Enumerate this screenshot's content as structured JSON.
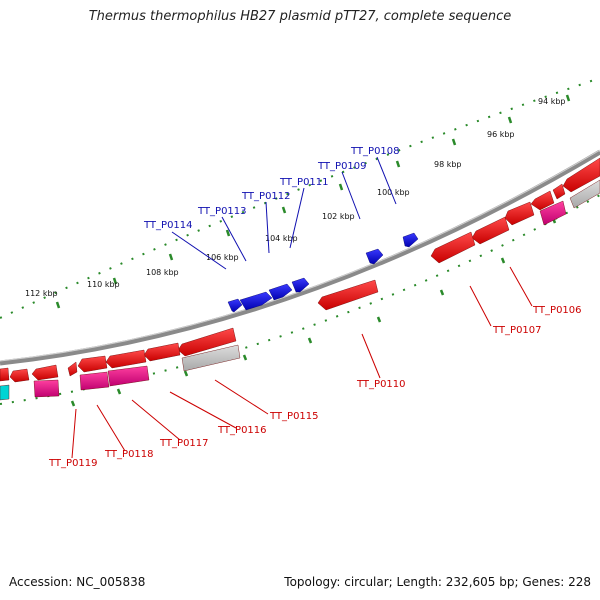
{
  "title": "Thermus thermophilus HB27 plasmid pTT27, complete sequence",
  "footer": {
    "accession": "Accession: NC_005838",
    "stats": "Topology: circular; Length: 232,605 bp; Genes: 228"
  },
  "kbp_ticks": [
    "94 kbp",
    "96 kbp",
    "98 kbp",
    "100 kbp",
    "102 kbp",
    "104 kbp",
    "106 kbp",
    "108 kbp",
    "110 kbp",
    "112 kbp"
  ],
  "forward_genes": [
    "TT_P0108",
    "TT_P0109",
    "TT_P0111",
    "TT_P0112",
    "TT_P0113",
    "TT_P0114"
  ],
  "reverse_genes": [
    "TT_P0106",
    "TT_P0107",
    "TT_P0110",
    "TT_P0115",
    "TT_P0116",
    "TT_P0117",
    "TT_P0118",
    "TT_P0119"
  ],
  "colors": {
    "forward": "#0000ee",
    "reverse": "#ee0000",
    "rna": "#ee1188",
    "pseudo": "#bbbbbb",
    "other": "#00cccc",
    "tick": "#2a8a2a",
    "backbone": "#888888"
  }
}
